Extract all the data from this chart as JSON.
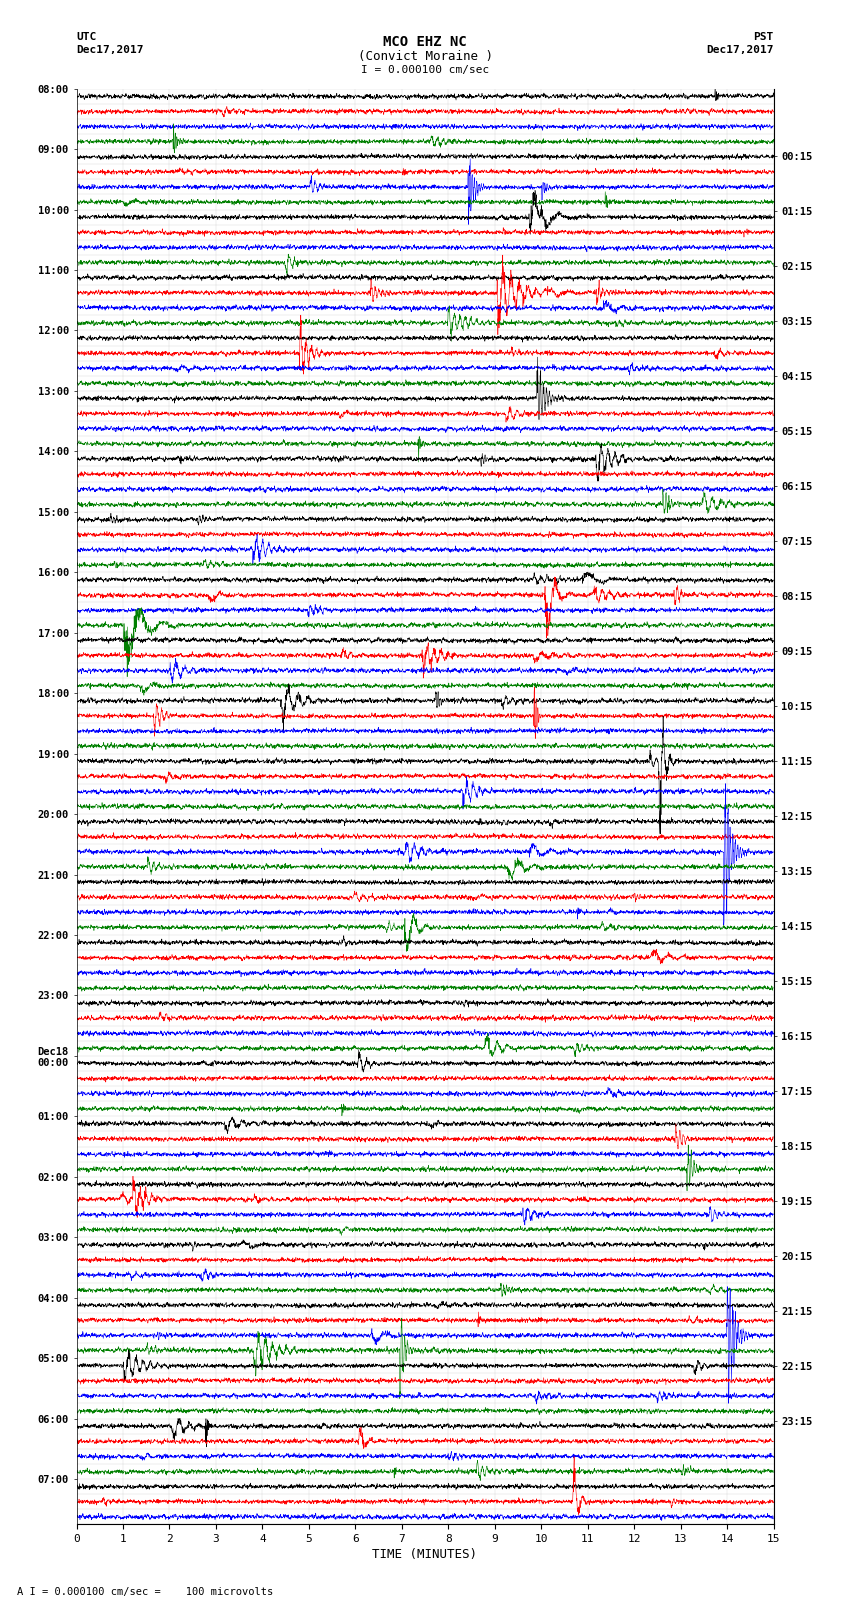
{
  "title_line1": "MCO EHZ NC",
  "title_line2": "(Convict Moraine )",
  "title_line3": "I = 0.000100 cm/sec",
  "label_utc": "UTC",
  "label_date_left": "Dec17,2017",
  "label_pst": "PST",
  "label_date_right": "Dec17,2017",
  "xlabel": "TIME (MINUTES)",
  "footnote": "A I = 0.000100 cm/sec =    100 microvolts",
  "xlim": [
    0,
    15
  ],
  "xticks": [
    0,
    1,
    2,
    3,
    4,
    5,
    6,
    7,
    8,
    9,
    10,
    11,
    12,
    13,
    14,
    15
  ],
  "num_rows": 95,
  "fig_width": 8.5,
  "fig_height": 16.13,
  "dpi": 100,
  "background_color": "#ffffff",
  "trace_color_cycle": [
    "black",
    "red",
    "blue",
    "green"
  ],
  "hour_labels_utc": [
    "08:00",
    "09:00",
    "10:00",
    "11:00",
    "12:00",
    "13:00",
    "14:00",
    "15:00",
    "16:00",
    "17:00",
    "18:00",
    "19:00",
    "20:00",
    "21:00",
    "22:00",
    "23:00",
    "Dec18\n00:00",
    "01:00",
    "02:00",
    "03:00",
    "04:00",
    "05:00",
    "06:00",
    "07:00"
  ],
  "hour_labels_pst": [
    "00:15",
    "01:15",
    "02:15",
    "03:15",
    "04:15",
    "05:15",
    "06:15",
    "07:15",
    "08:15",
    "09:15",
    "10:15",
    "11:15",
    "12:15",
    "13:15",
    "14:15",
    "15:15",
    "16:15",
    "17:15",
    "18:15",
    "19:15",
    "20:15",
    "21:15",
    "22:15",
    "23:15"
  ]
}
